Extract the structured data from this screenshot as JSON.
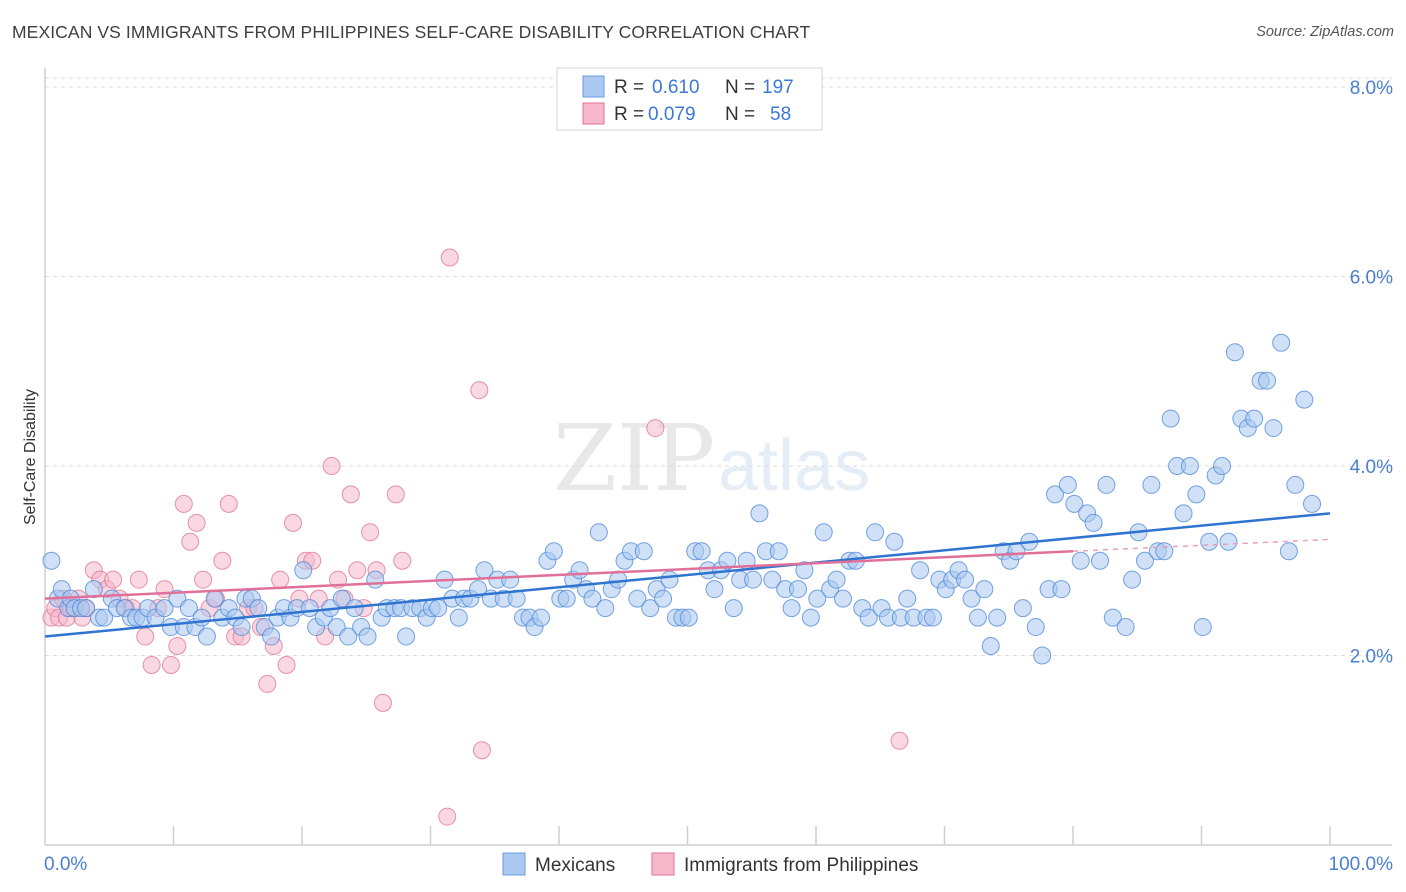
{
  "header": {
    "title": "MEXICAN VS IMMIGRANTS FROM PHILIPPINES SELF-CARE DISABILITY CORRELATION CHART",
    "source": "Source: ZipAtlas.com"
  },
  "watermark": {
    "zip": "ZIP",
    "atlas": "atlas"
  },
  "legend": {
    "rows": [
      {
        "r_label": "R =",
        "r_value": "0.610",
        "n_label": "N =",
        "n_value": "197",
        "color": "#aac8f0"
      },
      {
        "r_label": "R =",
        "r_value": "0.079",
        "n_label": "N =",
        "n_value": "58",
        "color": "#f6b8cb"
      }
    ]
  },
  "bottom_legend": {
    "items": [
      {
        "label": "Mexicans",
        "color": "#aac8f0"
      },
      {
        "label": "Immigrants from Philippines",
        "color": "#f6b8cb"
      }
    ]
  },
  "chart_data": {
    "type": "scatter",
    "title": "MEXICAN VS IMMIGRANTS FROM PHILIPPINES SELF-CARE DISABILITY CORRELATION CHART",
    "xlabel": "",
    "ylabel": "Self-Care Disability",
    "xlim": [
      0,
      100
    ],
    "ylim": [
      0,
      8.2
    ],
    "x_tick_labels": [
      "0.0%",
      "100.0%"
    ],
    "y_ticks": [
      2.0,
      4.0,
      6.0,
      8.0
    ],
    "y_tick_labels": [
      "2.0%",
      "4.0%",
      "6.0%",
      "8.0%"
    ],
    "grid": "horizontal dashed",
    "legend_position": "top-center",
    "series": [
      {
        "name": "Mexicans",
        "color": "#4a86d8",
        "fill": "#aac8f0",
        "trend": {
          "x": [
            0,
            100
          ],
          "y": [
            2.2,
            3.5
          ]
        },
        "points": [
          [
            0.5,
            3.0
          ],
          [
            1,
            2.6
          ],
          [
            1.3,
            2.7
          ],
          [
            1.8,
            2.5
          ],
          [
            2,
            2.6
          ],
          [
            2.3,
            2.5
          ],
          [
            2.8,
            2.5
          ],
          [
            3.2,
            2.5
          ],
          [
            3.8,
            2.7
          ],
          [
            4.2,
            2.4
          ],
          [
            4.6,
            2.4
          ],
          [
            5.2,
            2.6
          ],
          [
            5.6,
            2.5
          ],
          [
            6.2,
            2.5
          ],
          [
            6.7,
            2.4
          ],
          [
            7.1,
            2.4
          ],
          [
            7.6,
            2.4
          ],
          [
            8,
            2.5
          ],
          [
            8.6,
            2.4
          ],
          [
            9.3,
            2.5
          ],
          [
            9.8,
            2.3
          ],
          [
            10.3,
            2.6
          ],
          [
            10.8,
            2.3
          ],
          [
            11.2,
            2.5
          ],
          [
            11.7,
            2.3
          ],
          [
            12.2,
            2.4
          ],
          [
            12.6,
            2.2
          ],
          [
            13.2,
            2.6
          ],
          [
            13.8,
            2.4
          ],
          [
            14.3,
            2.5
          ],
          [
            14.8,
            2.4
          ],
          [
            15.3,
            2.3
          ],
          [
            15.6,
            2.6
          ],
          [
            16.1,
            2.6
          ],
          [
            16.6,
            2.5
          ],
          [
            17.1,
            2.3
          ],
          [
            17.6,
            2.2
          ],
          [
            18.1,
            2.4
          ],
          [
            18.6,
            2.5
          ],
          [
            19.1,
            2.4
          ],
          [
            19.6,
            2.5
          ],
          [
            20.1,
            2.9
          ],
          [
            20.6,
            2.5
          ],
          [
            21.1,
            2.3
          ],
          [
            21.7,
            2.4
          ],
          [
            22.2,
            2.5
          ],
          [
            22.7,
            2.3
          ],
          [
            23.1,
            2.6
          ],
          [
            23.6,
            2.2
          ],
          [
            24.1,
            2.5
          ],
          [
            24.6,
            2.3
          ],
          [
            25.1,
            2.2
          ],
          [
            25.7,
            2.8
          ],
          [
            26.2,
            2.4
          ],
          [
            26.6,
            2.5
          ],
          [
            27.2,
            2.5
          ],
          [
            27.7,
            2.5
          ],
          [
            28.1,
            2.2
          ],
          [
            28.6,
            2.5
          ],
          [
            29.2,
            2.5
          ],
          [
            29.7,
            2.4
          ],
          [
            30.1,
            2.5
          ],
          [
            30.6,
            2.5
          ],
          [
            31.1,
            2.8
          ],
          [
            31.7,
            2.6
          ],
          [
            32.2,
            2.4
          ],
          [
            32.6,
            2.6
          ],
          [
            33.1,
            2.6
          ],
          [
            33.7,
            2.7
          ],
          [
            34.2,
            2.9
          ],
          [
            34.7,
            2.6
          ],
          [
            35.2,
            2.8
          ],
          [
            35.7,
            2.6
          ],
          [
            36.2,
            2.8
          ],
          [
            36.7,
            2.6
          ],
          [
            37.2,
            2.4
          ],
          [
            37.7,
            2.4
          ],
          [
            38.1,
            2.3
          ],
          [
            38.6,
            2.4
          ],
          [
            39.1,
            3.0
          ],
          [
            39.6,
            3.1
          ],
          [
            40.1,
            2.6
          ],
          [
            40.6,
            2.6
          ],
          [
            41.1,
            2.8
          ],
          [
            41.6,
            2.9
          ],
          [
            42.1,
            2.7
          ],
          [
            42.6,
            2.6
          ],
          [
            43.1,
            3.3
          ],
          [
            43.6,
            2.5
          ],
          [
            44.1,
            2.7
          ],
          [
            44.6,
            2.8
          ],
          [
            45.1,
            3.0
          ],
          [
            45.6,
            3.1
          ],
          [
            46.1,
            2.6
          ],
          [
            46.6,
            3.1
          ],
          [
            47.1,
            2.5
          ],
          [
            47.6,
            2.7
          ],
          [
            48.1,
            2.6
          ],
          [
            48.6,
            2.8
          ],
          [
            49.1,
            2.4
          ],
          [
            49.6,
            2.4
          ],
          [
            50.1,
            2.4
          ],
          [
            50.6,
            3.1
          ],
          [
            51.1,
            3.1
          ],
          [
            51.6,
            2.9
          ],
          [
            52.1,
            2.7
          ],
          [
            52.6,
            2.9
          ],
          [
            53.1,
            3.0
          ],
          [
            53.6,
            2.5
          ],
          [
            54.1,
            2.8
          ],
          [
            54.6,
            3.0
          ],
          [
            55.1,
            2.8
          ],
          [
            55.6,
            3.5
          ],
          [
            56.1,
            3.1
          ],
          [
            56.6,
            2.8
          ],
          [
            57.1,
            3.1
          ],
          [
            57.6,
            2.7
          ],
          [
            58.1,
            2.5
          ],
          [
            58.6,
            2.7
          ],
          [
            59.1,
            2.9
          ],
          [
            59.6,
            2.4
          ],
          [
            60.1,
            2.6
          ],
          [
            60.6,
            3.3
          ],
          [
            61.1,
            2.7
          ],
          [
            61.6,
            2.8
          ],
          [
            62.1,
            2.6
          ],
          [
            62.6,
            3.0
          ],
          [
            63.1,
            3.0
          ],
          [
            63.6,
            2.5
          ],
          [
            64.1,
            2.4
          ],
          [
            64.6,
            3.3
          ],
          [
            65.1,
            2.5
          ],
          [
            65.6,
            2.4
          ],
          [
            66.1,
            3.2
          ],
          [
            66.6,
            2.4
          ],
          [
            67.1,
            2.6
          ],
          [
            67.6,
            2.4
          ],
          [
            68.1,
            2.9
          ],
          [
            68.6,
            2.4
          ],
          [
            69.1,
            2.4
          ],
          [
            69.6,
            2.8
          ],
          [
            70.1,
            2.7
          ],
          [
            70.6,
            2.8
          ],
          [
            71.1,
            2.9
          ],
          [
            71.6,
            2.8
          ],
          [
            72.1,
            2.6
          ],
          [
            72.6,
            2.4
          ],
          [
            73.1,
            2.7
          ],
          [
            73.6,
            2.1
          ],
          [
            74.1,
            2.4
          ],
          [
            74.6,
            3.1
          ],
          [
            75.1,
            3.0
          ],
          [
            75.6,
            3.1
          ],
          [
            76.1,
            2.5
          ],
          [
            76.6,
            3.2
          ],
          [
            77.1,
            2.3
          ],
          [
            77.6,
            2.0
          ],
          [
            78.1,
            2.7
          ],
          [
            78.6,
            3.7
          ],
          [
            79.1,
            2.7
          ],
          [
            79.6,
            3.8
          ],
          [
            80.1,
            3.6
          ],
          [
            80.6,
            3.0
          ],
          [
            81.1,
            3.5
          ],
          [
            81.6,
            3.4
          ],
          [
            82.1,
            3.0
          ],
          [
            82.6,
            3.8
          ],
          [
            83.1,
            2.4
          ],
          [
            84.1,
            2.3
          ],
          [
            84.6,
            2.8
          ],
          [
            85.1,
            3.3
          ],
          [
            85.6,
            3.0
          ],
          [
            86.1,
            3.8
          ],
          [
            86.6,
            3.1
          ],
          [
            87.1,
            3.1
          ],
          [
            87.6,
            4.5
          ],
          [
            88.1,
            4.0
          ],
          [
            88.6,
            3.5
          ],
          [
            89.1,
            4.0
          ],
          [
            89.6,
            3.7
          ],
          [
            90.1,
            2.3
          ],
          [
            90.6,
            3.2
          ],
          [
            91.1,
            3.9
          ],
          [
            91.6,
            4.0
          ],
          [
            92.1,
            3.2
          ],
          [
            92.6,
            5.2
          ],
          [
            93.1,
            4.5
          ],
          [
            93.6,
            4.4
          ],
          [
            94.1,
            4.5
          ],
          [
            94.6,
            4.9
          ],
          [
            95.1,
            4.9
          ],
          [
            95.6,
            4.4
          ],
          [
            96.2,
            5.3
          ],
          [
            96.8,
            3.1
          ],
          [
            97.3,
            3.8
          ],
          [
            98,
            4.7
          ],
          [
            98.6,
            3.6
          ]
        ]
      },
      {
        "name": "Immigrants from Philippines",
        "color": "#e07090",
        "fill": "#f6b8cb",
        "trend": {
          "x": [
            0,
            80
          ],
          "y": [
            2.6,
            3.1
          ]
        },
        "points": [
          [
            0.5,
            2.4
          ],
          [
            0.8,
            2.5
          ],
          [
            1.1,
            2.4
          ],
          [
            1.4,
            2.6
          ],
          [
            1.7,
            2.4
          ],
          [
            2,
            2.5
          ],
          [
            2.3,
            2.5
          ],
          [
            2.6,
            2.6
          ],
          [
            2.9,
            2.4
          ],
          [
            3.2,
            2.5
          ],
          [
            3.8,
            2.9
          ],
          [
            4.3,
            2.8
          ],
          [
            4.8,
            2.7
          ],
          [
            5.3,
            2.8
          ],
          [
            5.8,
            2.6
          ],
          [
            6.3,
            2.5
          ],
          [
            6.8,
            2.5
          ],
          [
            7.3,
            2.8
          ],
          [
            7.8,
            2.2
          ],
          [
            8.3,
            1.9
          ],
          [
            8.8,
            2.5
          ],
          [
            9.3,
            2.7
          ],
          [
            9.8,
            1.9
          ],
          [
            10.3,
            2.1
          ],
          [
            10.8,
            3.6
          ],
          [
            11.3,
            3.2
          ],
          [
            11.8,
            3.4
          ],
          [
            12.3,
            2.8
          ],
          [
            12.8,
            2.5
          ],
          [
            13.3,
            2.6
          ],
          [
            13.8,
            3.0
          ],
          [
            14.3,
            3.6
          ],
          [
            14.8,
            2.2
          ],
          [
            15.3,
            2.2
          ],
          [
            15.8,
            2.5
          ],
          [
            16.3,
            2.5
          ],
          [
            16.8,
            2.3
          ],
          [
            17.3,
            1.7
          ],
          [
            17.8,
            2.1
          ],
          [
            18.3,
            2.8
          ],
          [
            18.8,
            1.9
          ],
          [
            19.3,
            3.4
          ],
          [
            19.8,
            2.6
          ],
          [
            20.3,
            3.0
          ],
          [
            20.8,
            3.0
          ],
          [
            21.3,
            2.6
          ],
          [
            21.8,
            2.2
          ],
          [
            22.3,
            4.0
          ],
          [
            22.8,
            2.8
          ],
          [
            23.3,
            2.6
          ],
          [
            23.8,
            3.7
          ],
          [
            24.3,
            2.9
          ],
          [
            24.8,
            2.5
          ],
          [
            25.3,
            3.3
          ],
          [
            25.8,
            2.9
          ],
          [
            26.3,
            1.5
          ],
          [
            27.3,
            3.7
          ],
          [
            27.8,
            3.0
          ],
          [
            31.5,
            6.2
          ],
          [
            31.3,
            0.3
          ],
          [
            33.8,
            4.8
          ],
          [
            34.0,
            1.0
          ],
          [
            47.5,
            4.4
          ],
          [
            66.5,
            1.1
          ]
        ]
      }
    ]
  }
}
